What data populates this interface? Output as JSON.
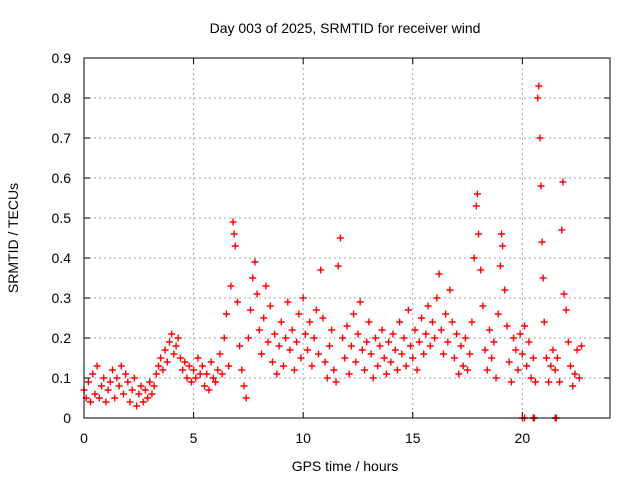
{
  "chart_data": {
    "type": "scatter",
    "title": "Day 003 of 2025, SRMTID for receiver wind",
    "xlabel": "GPS time / hours",
    "ylabel": "SRMTID / TECUs",
    "xlim": [
      0,
      24
    ],
    "ylim": [
      0,
      0.9
    ],
    "xticks": [
      0,
      5,
      10,
      15,
      20
    ],
    "xtick_labels": [
      "0",
      "5",
      "10",
      "15",
      "20"
    ],
    "yticks": [
      0,
      0.1,
      0.2,
      0.3,
      0.4,
      0.5,
      0.6,
      0.7,
      0.8,
      0.9
    ],
    "ytick_labels": [
      "0",
      "0.1",
      "0.2",
      "0.3",
      "0.4",
      "0.5",
      "0.6",
      "0.7",
      "0.8",
      "0.9"
    ],
    "grid": true,
    "marker": "plus",
    "color": "#ff0000",
    "series": [
      {
        "name": "SRMTID",
        "points": [
          [
            0.0,
            0.07
          ],
          [
            0.1,
            0.05
          ],
          [
            0.2,
            0.09
          ],
          [
            0.3,
            0.04
          ],
          [
            0.4,
            0.11
          ],
          [
            0.5,
            0.06
          ],
          [
            0.6,
            0.13
          ],
          [
            0.7,
            0.05
          ],
          [
            0.8,
            0.08
          ],
          [
            0.9,
            0.1
          ],
          [
            1.0,
            0.04
          ],
          [
            1.1,
            0.07
          ],
          [
            1.2,
            0.09
          ],
          [
            1.3,
            0.12
          ],
          [
            1.4,
            0.05
          ],
          [
            1.5,
            0.1
          ],
          [
            1.6,
            0.08
          ],
          [
            1.7,
            0.13
          ],
          [
            1.8,
            0.06
          ],
          [
            1.9,
            0.11
          ],
          [
            2.0,
            0.09
          ],
          [
            2.1,
            0.04
          ],
          [
            2.2,
            0.07
          ],
          [
            2.3,
            0.1
          ],
          [
            2.4,
            0.03
          ],
          [
            2.5,
            0.06
          ],
          [
            2.6,
            0.08
          ],
          [
            2.7,
            0.04
          ],
          [
            2.8,
            0.07
          ],
          [
            2.9,
            0.05
          ],
          [
            3.0,
            0.09
          ],
          [
            3.1,
            0.06
          ],
          [
            3.2,
            0.08
          ],
          [
            3.3,
            0.11
          ],
          [
            3.4,
            0.13
          ],
          [
            3.5,
            0.15
          ],
          [
            3.6,
            0.12
          ],
          [
            3.7,
            0.17
          ],
          [
            3.8,
            0.14
          ],
          [
            3.9,
            0.19
          ],
          [
            4.0,
            0.21
          ],
          [
            4.1,
            0.16
          ],
          [
            4.2,
            0.18
          ],
          [
            4.3,
            0.2
          ],
          [
            4.4,
            0.15
          ],
          [
            4.5,
            0.12
          ],
          [
            4.6,
            0.14
          ],
          [
            4.7,
            0.1
          ],
          [
            4.8,
            0.13
          ],
          [
            4.9,
            0.09
          ],
          [
            5.0,
            0.12
          ],
          [
            5.1,
            0.1
          ],
          [
            5.2,
            0.15
          ],
          [
            5.3,
            0.11
          ],
          [
            5.4,
            0.13
          ],
          [
            5.5,
            0.08
          ],
          [
            5.6,
            0.11
          ],
          [
            5.7,
            0.07
          ],
          [
            5.8,
            0.14
          ],
          [
            5.9,
            0.1
          ],
          [
            6.0,
            0.09
          ],
          [
            6.1,
            0.12
          ],
          [
            6.2,
            0.16
          ],
          [
            6.3,
            0.11
          ],
          [
            6.4,
            0.2
          ],
          [
            6.5,
            0.26
          ],
          [
            6.6,
            0.13
          ],
          [
            6.7,
            0.33
          ],
          [
            6.8,
            0.49
          ],
          [
            6.85,
            0.46
          ],
          [
            6.9,
            0.43
          ],
          [
            7.0,
            0.29
          ],
          [
            7.1,
            0.18
          ],
          [
            7.2,
            0.12
          ],
          [
            7.3,
            0.08
          ],
          [
            7.4,
            0.05
          ],
          [
            7.5,
            0.2
          ],
          [
            7.6,
            0.27
          ],
          [
            7.7,
            0.35
          ],
          [
            7.8,
            0.39
          ],
          [
            7.9,
            0.31
          ],
          [
            8.0,
            0.22
          ],
          [
            8.1,
            0.16
          ],
          [
            8.2,
            0.25
          ],
          [
            8.3,
            0.33
          ],
          [
            8.4,
            0.19
          ],
          [
            8.5,
            0.28
          ],
          [
            8.6,
            0.14
          ],
          [
            8.7,
            0.21
          ],
          [
            8.8,
            0.11
          ],
          [
            8.9,
            0.18
          ],
          [
            9.0,
            0.24
          ],
          [
            9.1,
            0.13
          ],
          [
            9.2,
            0.2
          ],
          [
            9.3,
            0.29
          ],
          [
            9.4,
            0.17
          ],
          [
            9.5,
            0.22
          ],
          [
            9.6,
            0.12
          ],
          [
            9.7,
            0.19
          ],
          [
            9.8,
            0.26
          ],
          [
            9.9,
            0.15
          ],
          [
            10.0,
            0.3
          ],
          [
            10.1,
            0.21
          ],
          [
            10.2,
            0.17
          ],
          [
            10.3,
            0.24
          ],
          [
            10.4,
            0.13
          ],
          [
            10.5,
            0.2
          ],
          [
            10.6,
            0.27
          ],
          [
            10.7,
            0.16
          ],
          [
            10.8,
            0.37
          ],
          [
            10.9,
            0.25
          ],
          [
            11.0,
            0.14
          ],
          [
            11.1,
            0.1
          ],
          [
            11.2,
            0.18
          ],
          [
            11.3,
            0.22
          ],
          [
            11.4,
            0.12
          ],
          [
            11.5,
            0.09
          ],
          [
            11.6,
            0.38
          ],
          [
            11.7,
            0.45
          ],
          [
            11.8,
            0.2
          ],
          [
            11.9,
            0.15
          ],
          [
            12.0,
            0.23
          ],
          [
            12.1,
            0.11
          ],
          [
            12.2,
            0.18
          ],
          [
            12.3,
            0.26
          ],
          [
            12.4,
            0.14
          ],
          [
            12.5,
            0.21
          ],
          [
            12.6,
            0.29
          ],
          [
            12.7,
            0.17
          ],
          [
            12.8,
            0.12
          ],
          [
            12.9,
            0.19
          ],
          [
            13.0,
            0.24
          ],
          [
            13.1,
            0.16
          ],
          [
            13.2,
            0.1
          ],
          [
            13.3,
            0.2
          ],
          [
            13.4,
            0.13
          ],
          [
            13.5,
            0.18
          ],
          [
            13.6,
            0.22
          ],
          [
            13.7,
            0.15
          ],
          [
            13.8,
            0.11
          ],
          [
            13.9,
            0.19
          ],
          [
            14.0,
            0.14
          ],
          [
            14.1,
            0.21
          ],
          [
            14.2,
            0.17
          ],
          [
            14.3,
            0.12
          ],
          [
            14.4,
            0.24
          ],
          [
            14.5,
            0.16
          ],
          [
            14.6,
            0.2
          ],
          [
            14.7,
            0.13
          ],
          [
            14.8,
            0.27
          ],
          [
            14.9,
            0.18
          ],
          [
            15.0,
            0.15
          ],
          [
            15.1,
            0.22
          ],
          [
            15.2,
            0.12
          ],
          [
            15.3,
            0.19
          ],
          [
            15.4,
            0.25
          ],
          [
            15.5,
            0.16
          ],
          [
            15.6,
            0.21
          ],
          [
            15.7,
            0.28
          ],
          [
            15.8,
            0.18
          ],
          [
            15.9,
            0.24
          ],
          [
            16.0,
            0.2
          ],
          [
            16.1,
            0.3
          ],
          [
            16.2,
            0.36
          ],
          [
            16.3,
            0.22
          ],
          [
            16.4,
            0.16
          ],
          [
            16.5,
            0.26
          ],
          [
            16.6,
            0.19
          ],
          [
            16.7,
            0.32
          ],
          [
            16.8,
            0.24
          ],
          [
            16.9,
            0.15
          ],
          [
            17.0,
            0.21
          ],
          [
            17.1,
            0.11
          ],
          [
            17.2,
            0.18
          ],
          [
            17.3,
            0.13
          ],
          [
            17.4,
            0.2
          ],
          [
            17.5,
            0.12
          ],
          [
            17.6,
            0.16
          ],
          [
            17.7,
            0.24
          ],
          [
            17.8,
            0.4
          ],
          [
            17.9,
            0.53
          ],
          [
            17.95,
            0.56
          ],
          [
            18.0,
            0.46
          ],
          [
            18.1,
            0.37
          ],
          [
            18.2,
            0.28
          ],
          [
            18.3,
            0.17
          ],
          [
            18.4,
            0.12
          ],
          [
            18.5,
            0.22
          ],
          [
            18.6,
            0.15
          ],
          [
            18.7,
            0.19
          ],
          [
            18.8,
            0.1
          ],
          [
            18.9,
            0.26
          ],
          [
            19.0,
            0.38
          ],
          [
            19.05,
            0.46
          ],
          [
            19.1,
            0.43
          ],
          [
            19.2,
            0.32
          ],
          [
            19.3,
            0.23
          ],
          [
            19.4,
            0.14
          ],
          [
            19.5,
            0.09
          ],
          [
            19.6,
            0.2
          ],
          [
            19.7,
            0.17
          ],
          [
            19.8,
            0.12
          ],
          [
            19.9,
            0.21
          ],
          [
            20.0,
            0.16
          ],
          [
            20.1,
            0.23
          ],
          [
            20.2,
            0.13
          ],
          [
            20.3,
            0.19
          ],
          [
            20.4,
            0.1
          ],
          [
            20.5,
            0.15
          ],
          [
            20.6,
            0.09
          ],
          [
            20.7,
            0.8
          ],
          [
            20.75,
            0.83
          ],
          [
            20.8,
            0.7
          ],
          [
            20.85,
            0.58
          ],
          [
            20.9,
            0.44
          ],
          [
            20.95,
            0.35
          ],
          [
            21.0,
            0.24
          ],
          [
            21.1,
            0.15
          ],
          [
            21.2,
            0.09
          ],
          [
            21.3,
            0.13
          ],
          [
            21.4,
            0.17
          ],
          [
            21.5,
            0.12
          ],
          [
            21.6,
            0.15
          ],
          [
            21.7,
            0.09
          ],
          [
            21.8,
            0.47
          ],
          [
            21.85,
            0.59
          ],
          [
            21.9,
            0.31
          ],
          [
            22.0,
            0.27
          ],
          [
            22.1,
            0.19
          ],
          [
            22.2,
            0.13
          ],
          [
            22.3,
            0.08
          ],
          [
            22.4,
            0.11
          ],
          [
            22.5,
            0.17
          ],
          [
            22.6,
            0.1
          ],
          [
            22.7,
            0.18
          ],
          [
            20.0,
            0.0
          ],
          [
            20.1,
            0.0
          ],
          [
            20.5,
            0.0
          ],
          [
            20.55,
            0.0
          ],
          [
            21.5,
            0.0
          ],
          [
            21.55,
            0.0
          ]
        ]
      }
    ]
  }
}
